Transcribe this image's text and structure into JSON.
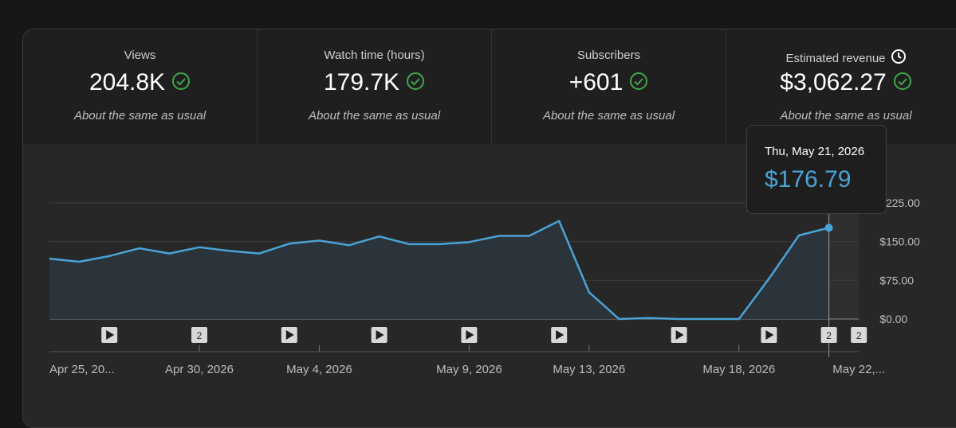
{
  "metrics": [
    {
      "label": "Views",
      "value": "204.8K",
      "note": "About the same as usual",
      "icon": "check-circle-icon"
    },
    {
      "label": "Watch time (hours)",
      "value": "179.7K",
      "note": "About the same as usual",
      "icon": "check-circle-icon"
    },
    {
      "label": "Subscribers",
      "value": "+601",
      "note": "About the same as usual",
      "icon": "check-circle-icon"
    },
    {
      "label": "Estimated revenue",
      "value": "$3,062.27",
      "note": "About the same as usual",
      "icon": "check-circle-icon",
      "label_icon": "clock-icon"
    }
  ],
  "tooltip": {
    "date": "Thu, May 21, 2026",
    "value": "$176.79"
  },
  "colors": {
    "accent": "#4aa3d6",
    "check": "#3ea84a",
    "background": "#272727"
  },
  "chart_data": {
    "type": "area",
    "x": [
      "Apr 25, 2026",
      "Apr 26, 2026",
      "Apr 27, 2026",
      "Apr 28, 2026",
      "Apr 29, 2026",
      "Apr 30, 2026",
      "May 1, 2026",
      "May 2, 2026",
      "May 3, 2026",
      "May 4, 2026",
      "May 5, 2026",
      "May 6, 2026",
      "May 7, 2026",
      "May 8, 2026",
      "May 9, 2026",
      "May 10, 2026",
      "May 11, 2026",
      "May 12, 2026",
      "May 13, 2026",
      "May 14, 2026",
      "May 15, 2026",
      "May 16, 2026",
      "May 17, 2026",
      "May 18, 2026",
      "May 19, 2026",
      "May 20, 2026",
      "May 21, 2026"
    ],
    "series": [
      {
        "values": [
          117,
          111,
          122,
          137,
          127,
          139,
          132,
          127,
          146,
          152,
          143,
          160,
          145,
          145,
          149,
          161,
          161,
          190,
          52,
          0,
          2,
          0,
          0,
          0,
          78,
          162,
          176.79
        ]
      }
    ],
    "x_tick_labels": [
      "Apr 25, 20...",
      "Apr 30, 2026",
      "May 4, 2026",
      "May 9, 2026",
      "May 13, 2026",
      "May 18, 2026",
      "May 22,..."
    ],
    "x_tick_indices": [
      0,
      5,
      9,
      14,
      18,
      23,
      27
    ],
    "y_tick_labels": [
      "$0.00",
      "$75.00",
      "$150.00",
      "$225.00"
    ],
    "y_ticks": [
      0,
      75,
      150,
      225
    ],
    "ylim": [
      0,
      225
    ],
    "highlight_index": 26,
    "markers": [
      {
        "index": 2,
        "kind": "play-icon"
      },
      {
        "index": 5,
        "kind": "count",
        "text": "2"
      },
      {
        "index": 8,
        "kind": "play-icon"
      },
      {
        "index": 11,
        "kind": "play-icon"
      },
      {
        "index": 14,
        "kind": "play-icon"
      },
      {
        "index": 17,
        "kind": "play-icon"
      },
      {
        "index": 21,
        "kind": "play-icon"
      },
      {
        "index": 24,
        "kind": "play-icon"
      },
      {
        "index": 26,
        "kind": "count",
        "text": "2"
      },
      {
        "index": 27,
        "kind": "count",
        "text": "2"
      }
    ],
    "grid": true
  }
}
